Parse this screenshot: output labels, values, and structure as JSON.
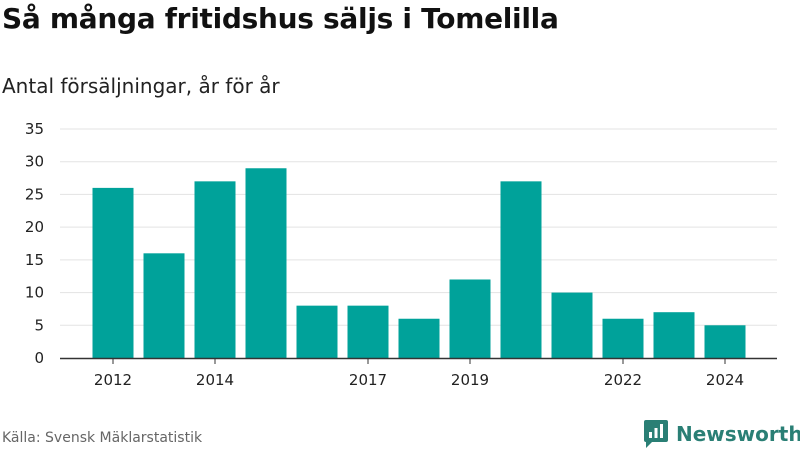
{
  "header": {
    "title": "Så många fritidshus säljs i Tomelilla",
    "subtitle": "Antal försäljningar, år för år"
  },
  "footer": {
    "source": "Källa: Svensk Mäklarstatistik",
    "brand": "Newsworthy"
  },
  "colors": {
    "bar": "#00a29a",
    "brand": "#2a7f75",
    "grid": "#e3e3e3",
    "axis": "#333333",
    "tick_text": "#222222"
  },
  "icons": {
    "brand": "newsworthy-logo-icon"
  },
  "chart_data": {
    "type": "bar",
    "title": "Så många fritidshus säljs i Tomelilla",
    "subtitle": "Antal försäljningar, år för år",
    "categories": [
      "2012",
      "2013",
      "2014",
      "2015",
      "2016",
      "2017",
      "2018",
      "2019",
      "2020",
      "2021",
      "2022",
      "2023",
      "2024"
    ],
    "x_tick_labels": [
      "2012",
      "2014",
      "2017",
      "2019",
      "2022",
      "2024"
    ],
    "values": [
      26,
      16,
      27,
      29,
      8,
      8,
      6,
      12,
      27,
      10,
      6,
      7,
      5
    ],
    "ylim": [
      0,
      35
    ],
    "yticks": [
      0,
      5,
      10,
      15,
      20,
      25,
      30,
      35
    ],
    "grid": true,
    "legend": "none"
  }
}
